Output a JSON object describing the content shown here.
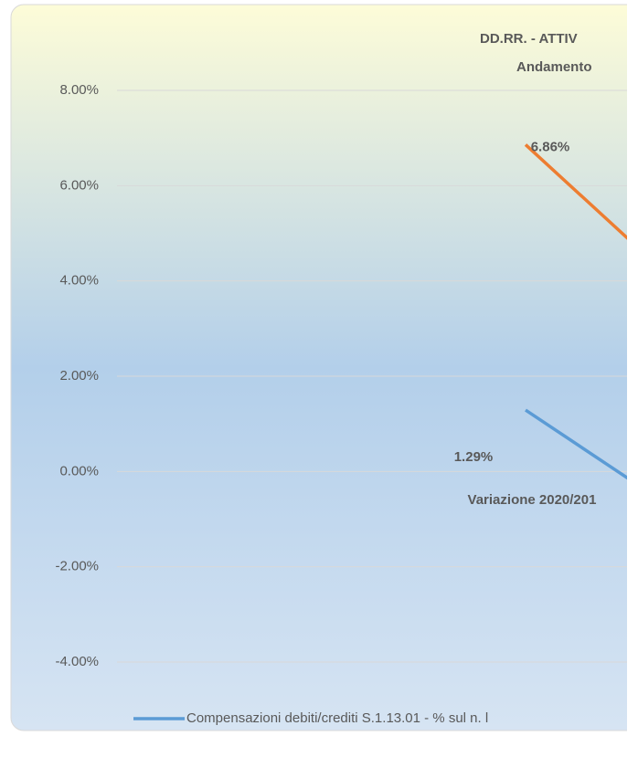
{
  "chart_data": {
    "type": "line",
    "title": "DD.RR. - ATTIV",
    "subtitle": "Andamento",
    "categories": [
      "Variazione 2020/201",
      null
    ],
    "series": [
      {
        "name": "Compensazioni debiti/crediti S.1.13.01 - % sul n. l",
        "color": "#5b9bd5",
        "values": [
          1.29,
          -0.31
        ],
        "value_labels": [
          "1.29%",
          null
        ]
      },
      {
        "color": "#ed7d31",
        "values": [
          6.86,
          4.66
        ],
        "value_labels": [
          "6.86%",
          null
        ]
      }
    ],
    "ylim": [
      -4,
      8
    ],
    "yticks": [
      {
        "value": -4,
        "label": "-4.00%"
      },
      {
        "value": -2,
        "label": "-2.00%"
      },
      {
        "value": 0,
        "label": "0.00%"
      },
      {
        "value": 2,
        "label": "2.00%"
      },
      {
        "value": 4,
        "label": "4.00%"
      },
      {
        "value": 6,
        "label": "6.00%"
      },
      {
        "value": 8,
        "label": "8.00%"
      }
    ],
    "grid": true,
    "legend": "bottom"
  }
}
